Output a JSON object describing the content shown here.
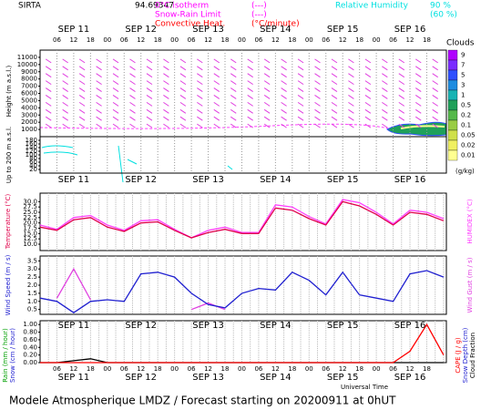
{
  "header": {
    "site": "SIRTA",
    "coords": "94.69347",
    "isotherm": "0°C isotherm",
    "isotherm_key": "(---)",
    "snow_rain": "Snow-Rain Limit",
    "snow_rain_key": "(---)",
    "convective": "Convective Heat.",
    "convective_key": "(°C/minute)",
    "rh": "Relative Humidity",
    "rh_high": "90 %",
    "rh_low": "(60 %)"
  },
  "chart_data": [
    {
      "type": "contour",
      "ylabel": "Height (m a.s.l.)",
      "ylabel2": "Up to 200 m a.s.l.",
      "xlim": [
        0,
        145
      ],
      "xticks": [
        {
          "value": 6,
          "label": "06"
        },
        12,
        18,
        {
          "value": 24,
          "label": "00"
        },
        {
          "value": 30,
          "label": "06"
        },
        {
          "value": 36,
          "label": "12"
        },
        {
          "value": 42,
          "label": "18"
        },
        {
          "value": 48,
          "label": "00"
        },
        {
          "value": 54,
          "label": "06"
        },
        {
          "value": 60,
          "label": "12"
        },
        {
          "value": 66,
          "label": "18"
        },
        {
          "value": 72,
          "label": "00"
        },
        {
          "value": 78,
          "label": "06"
        },
        {
          "value": 84,
          "label": "12"
        },
        {
          "value": 90,
          "label": "18"
        },
        {
          "value": 96,
          "label": "00"
        },
        {
          "value": 102,
          "label": "06"
        },
        {
          "value": 108,
          "label": "12"
        },
        {
          "value": 114,
          "label": "18"
        },
        {
          "value": 120,
          "label": "00"
        },
        {
          "value": 126,
          "label": "06"
        },
        {
          "value": 132,
          "label": "12"
        },
        {
          "value": 138,
          "label": "18"
        }
      ],
      "days": [
        {
          "value": 12,
          "label": "SEP 11"
        },
        {
          "value": 36,
          "label": "SEP 12"
        },
        {
          "value": 60,
          "label": "SEP 13"
        },
        {
          "value": 84,
          "label": "SEP 14"
        },
        {
          "value": 108,
          "label": "SEP 15"
        },
        {
          "value": 132,
          "label": "SEP 16"
        }
      ],
      "ylim": [
        0,
        12000
      ],
      "yticks": [
        1000,
        2000,
        3000,
        4000,
        5000,
        6000,
        7000,
        8000,
        9000,
        10000,
        11000
      ],
      "y2lim": [
        0,
        200
      ],
      "y2ticks": [
        20,
        40,
        60,
        80,
        100,
        120,
        140,
        160,
        180
      ],
      "colorbar": {
        "title": "Clouds",
        "unit": "(g/kg)",
        "levels": [
          "9",
          "7",
          "5",
          "3",
          "1",
          "0.5",
          "0.2",
          "0.1",
          "0.05",
          "0.02",
          "0.01"
        ],
        "colors": [
          "#b000ff",
          "#7a2cff",
          "#2f4fff",
          "#1d8ce0",
          "#17b3b3",
          "#1fa05a",
          "#54b84a",
          "#99cc44",
          "#cfe04a",
          "#f0f060",
          "#ffff90"
        ]
      }
    },
    {
      "type": "line",
      "ylabel": "Temperature (°C)",
      "y2label": "HUMIDEX (°C)",
      "xlim": [
        0,
        145
      ],
      "days": [
        {
          "value": 12,
          "label": "SEP 11"
        },
        {
          "value": 36,
          "label": "SEP 12"
        },
        {
          "value": 60,
          "label": "SEP 13"
        },
        {
          "value": 84,
          "label": "SEP 14"
        },
        {
          "value": 108,
          "label": "SEP 15"
        },
        {
          "value": 132,
          "label": "SEP 16"
        }
      ],
      "ylim": [
        7,
        34
      ],
      "yticks": [
        {
          "value": 10,
          "label": "10.0"
        },
        12.5,
        {
          "value": 15,
          "label": "15.0"
        },
        17.5,
        {
          "value": 20,
          "label": "20.0"
        },
        22.5,
        {
          "value": 25,
          "label": "25.0"
        },
        27.5,
        {
          "value": 30,
          "label": "30.0"
        }
      ],
      "x": [
        0,
        6,
        12,
        18,
        24,
        30,
        36,
        42,
        48,
        54,
        60,
        66,
        72,
        78,
        84,
        90,
        96,
        102,
        108,
        114,
        120,
        126,
        132,
        138,
        144
      ],
      "series": [
        {
          "name": "HUMIDEX",
          "color": "#ff40ff",
          "values": [
            19,
            17,
            22.5,
            23.5,
            19,
            16.5,
            21,
            21.5,
            17,
            13,
            16.5,
            18,
            15.5,
            15.5,
            28.5,
            27.5,
            23,
            19.5,
            31,
            29.5,
            25,
            19.5,
            26,
            25,
            22
          ]
        },
        {
          "name": "Temperature",
          "color": "#e0004a",
          "values": [
            18,
            16.5,
            21.5,
            22.5,
            18,
            16,
            20,
            20.5,
            16.5,
            13,
            15.5,
            17,
            15,
            15,
            27,
            26,
            22,
            19,
            30,
            28,
            24,
            19,
            25,
            24,
            21
          ]
        }
      ]
    },
    {
      "type": "line",
      "ylabel": "Wind Speed (m / s)",
      "y2label": "Wind Gust (m / s)",
      "xlim": [
        0,
        145
      ],
      "ylim": [
        0.2,
        3.8
      ],
      "yticks": [
        0.5,
        {
          "value": 1,
          "label": "1.0"
        },
        1.5,
        {
          "value": 2,
          "label": "2.0"
        },
        2.5,
        {
          "value": 3,
          "label": "3.0"
        },
        3.5
      ],
      "x": [
        0,
        6,
        12,
        18,
        24,
        30,
        36,
        42,
        48,
        54,
        60,
        66,
        72,
        78,
        84,
        90,
        96,
        102,
        108,
        114,
        120,
        126,
        132,
        138,
        144
      ],
      "series": [
        {
          "name": "Wind Gust",
          "color": "#e040e0",
          "values": [
            null,
            1.2,
            3.0,
            1.1,
            null,
            null,
            null,
            null,
            null,
            0.5,
            0.9,
            0.5,
            null,
            null,
            null,
            null,
            null,
            null,
            null,
            null,
            null,
            null,
            null,
            null,
            null
          ]
        },
        {
          "name": "Wind Speed",
          "color": "#2020d0",
          "values": [
            1.2,
            1.0,
            0.3,
            1.0,
            1.1,
            1.0,
            2.7,
            2.8,
            2.5,
            1.5,
            0.8,
            0.6,
            1.5,
            1.8,
            1.7,
            2.8,
            2.3,
            1.4,
            2.8,
            1.4,
            1.2,
            1.0,
            2.7,
            2.9,
            2.5
          ]
        }
      ]
    },
    {
      "type": "line",
      "ylabel": "Rain (mm / hour)",
      "ylabel_b": "Snow (cm / hour)",
      "y2label": "CAPE (J / g)",
      "y2label_b": "Snow Depth (cm)",
      "y2label_c": "Cloud Fraction",
      "xlabel": "Universal Time",
      "xlim": [
        0,
        145
      ],
      "xticks": [
        {
          "value": 6,
          "label": "06"
        },
        12,
        18,
        {
          "value": 24,
          "label": "00"
        },
        {
          "value": 30,
          "label": "06"
        },
        {
          "value": 36,
          "label": "12"
        },
        {
          "value": 42,
          "label": "18"
        },
        {
          "value": 48,
          "label": "00"
        },
        {
          "value": 54,
          "label": "06"
        },
        {
          "value": 60,
          "label": "12"
        },
        {
          "value": 66,
          "label": "18"
        },
        {
          "value": 72,
          "label": "00"
        },
        {
          "value": 78,
          "label": "06"
        },
        {
          "value": 84,
          "label": "12"
        },
        {
          "value": 90,
          "label": "18"
        },
        {
          "value": 96,
          "label": "00"
        },
        {
          "value": 102,
          "label": "06"
        },
        {
          "value": 108,
          "label": "12"
        },
        {
          "value": 114,
          "label": "18"
        },
        {
          "value": 120,
          "label": "00"
        },
        {
          "value": 126,
          "label": "06"
        },
        {
          "value": 132,
          "label": "12"
        },
        {
          "value": 138,
          "label": "18"
        }
      ],
      "days": [
        {
          "value": 12,
          "label": "SEP 11"
        },
        {
          "value": 36,
          "label": "SEP 12"
        },
        {
          "value": 60,
          "label": "SEP 13"
        },
        {
          "value": 84,
          "label": "SEP 14"
        },
        {
          "value": 108,
          "label": "SEP 15"
        },
        {
          "value": 132,
          "label": "SEP 16"
        }
      ],
      "bottom_days": [
        {
          "value": 12,
          "label": "SEP 11"
        },
        {
          "value": 36,
          "label": "SEP 12"
        },
        {
          "value": 60,
          "label": "SEP 13"
        },
        {
          "value": 84,
          "label": "SEP 14"
        },
        {
          "value": 108,
          "label": "SEP 15"
        },
        {
          "value": 132,
          "label": "SEP 16"
        }
      ],
      "ylim": [
        0,
        1.1
      ],
      "yticks": [
        {
          "value": 0,
          "label": "0.00"
        },
        {
          "value": 0.2,
          "label": "0.20"
        },
        {
          "value": 0.4,
          "label": "0.40"
        },
        {
          "value": 0.6,
          "label": "0.60"
        },
        {
          "value": 0.8,
          "label": "0.80"
        },
        {
          "value": 1,
          "label": "1.00"
        }
      ],
      "x": [
        0,
        6,
        12,
        18,
        24,
        30,
        36,
        42,
        48,
        54,
        60,
        66,
        72,
        78,
        84,
        90,
        96,
        102,
        108,
        114,
        120,
        126,
        132,
        138,
        144
      ],
      "series": [
        {
          "name": "Rain",
          "color": "#000000",
          "values": [
            0,
            0,
            0.05,
            0.1,
            0,
            0,
            0,
            0,
            0,
            0,
            0,
            0,
            0,
            0,
            0,
            0,
            0,
            0,
            0,
            0,
            0,
            0,
            0,
            0,
            0
          ]
        },
        {
          "name": "CAPE",
          "color": "#ff0000",
          "values": [
            0,
            0,
            0,
            0,
            0,
            0,
            0,
            0,
            0,
            0,
            0,
            0,
            0,
            0,
            0,
            0,
            0,
            0,
            0,
            0,
            0,
            0,
            0.3,
            1.0,
            0.2
          ]
        }
      ]
    }
  ],
  "footer": "Modele Atmospherique LMDZ / Forecast starting on 20200911 at 0hUT"
}
